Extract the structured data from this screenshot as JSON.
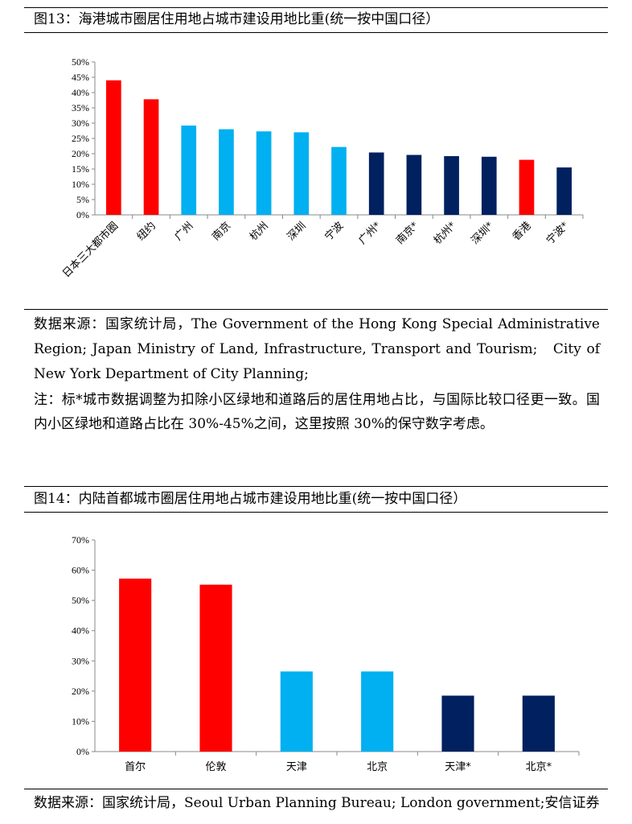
{
  "colors": {
    "red": "#ff0000",
    "light_blue": "#00b0f0",
    "navy": "#002060"
  },
  "fig13": {
    "title": "图13：海港城市圈居住用地占城市建设用地比重(统一按中国口径）",
    "source": "数据来源：国家统计局，The Government of the Hong Kong Special Administrative Region; Japan Ministry of Land, Infrastructure, Transport and Tourism;　City of New York Department of City Planning;",
    "note": "注：标*城市数据调整为扣除小区绿地和道路后的居住用地占比，与国际比较口径更一致。国内小区绿地和道路占比在 30%-45%之间，这里按照 30%的保守数字考虑。"
  },
  "fig14": {
    "title": "图14：内陆首都城市圈居住用地占城市建设用地比重(统一按中国口径）",
    "source": "数据来源：国家统计局，Seoul Urban Planning Bureau; London government;安信证券"
  },
  "chart_data": [
    {
      "type": "bar",
      "categories": [
        "日本三大都市圈",
        "纽约",
        "广州",
        "南京",
        "杭州",
        "深圳",
        "宁波",
        "广州*",
        "南京*",
        "杭州*",
        "深圳*",
        "香港",
        "宁波*"
      ],
      "values": [
        44,
        37.8,
        29.2,
        28,
        27.3,
        27,
        22.2,
        20.4,
        19.6,
        19.2,
        19,
        18,
        15.5
      ],
      "colors": [
        "red",
        "red",
        "light_blue",
        "light_blue",
        "light_blue",
        "light_blue",
        "light_blue",
        "navy",
        "navy",
        "navy",
        "navy",
        "red",
        "navy"
      ],
      "yticks": [
        "0%",
        "5%",
        "10%",
        "15%",
        "20%",
        "25%",
        "30%",
        "35%",
        "40%",
        "45%",
        "50%"
      ],
      "ylim": [
        0,
        50
      ],
      "grid": false,
      "legend": "none"
    },
    {
      "type": "bar",
      "categories": [
        "首尔",
        "伦敦",
        "天津",
        "北京",
        "天津*",
        "北京*"
      ],
      "values": [
        57.2,
        55.2,
        26.5,
        26.5,
        18.5,
        18.5
      ],
      "colors": [
        "red",
        "red",
        "light_blue",
        "light_blue",
        "navy",
        "navy"
      ],
      "yticks": [
        "0%",
        "10%",
        "20%",
        "30%",
        "40%",
        "50%",
        "60%",
        "70%"
      ],
      "ylim": [
        0,
        70
      ],
      "grid": false,
      "legend": "none"
    }
  ]
}
